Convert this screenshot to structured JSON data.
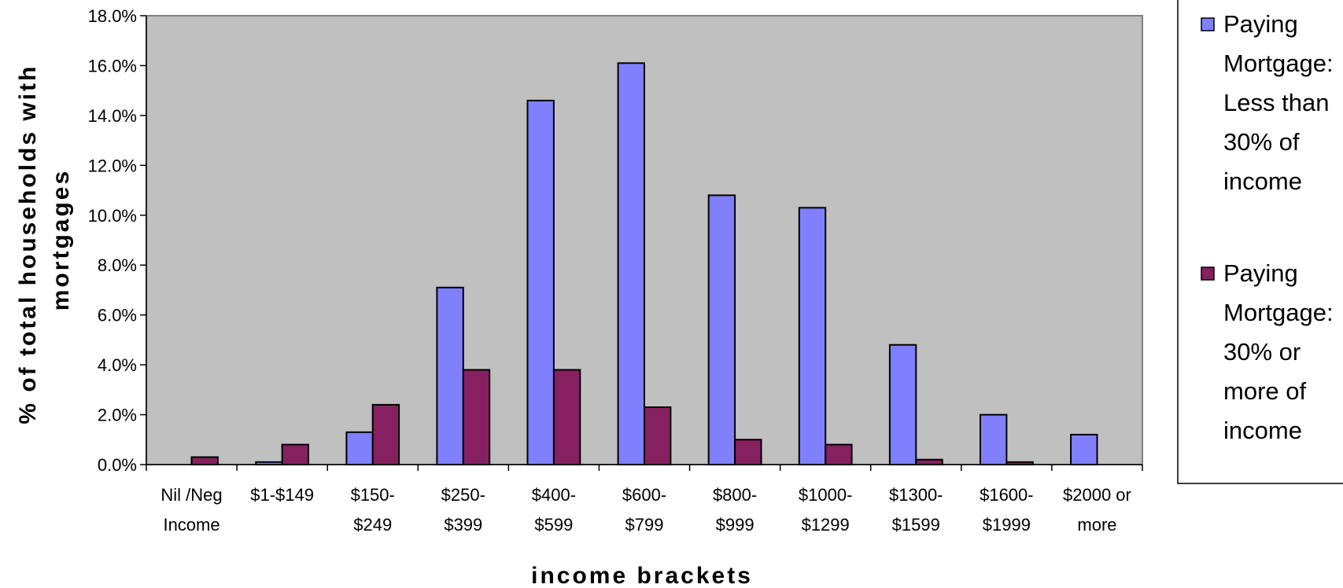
{
  "chart_data": {
    "type": "bar",
    "title": "",
    "xlabel": "income brackets",
    "ylabel_lines": [
      "% of total households with",
      "mortgages"
    ],
    "ylim": [
      0,
      18
    ],
    "yticks": [
      "0.0%",
      "2.0%",
      "4.0%",
      "6.0%",
      "8.0%",
      "10.0%",
      "12.0%",
      "14.0%",
      "16.0%",
      "18.0%"
    ],
    "grid": false,
    "legend_position": "right",
    "categories": [
      [
        "Nil /Neg",
        "Income"
      ],
      [
        "$1-$149"
      ],
      [
        "$150-",
        "$249"
      ],
      [
        "$250-",
        "$399"
      ],
      [
        "$400-",
        "$599"
      ],
      [
        "$600-",
        "$799"
      ],
      [
        "$800-",
        "$999"
      ],
      [
        "$1000-",
        "$1299"
      ],
      [
        "$1300-",
        "$1599"
      ],
      [
        "$1600-",
        "$1999"
      ],
      [
        "$2000 or",
        "more"
      ]
    ],
    "series": [
      {
        "name": "Paying Mortgage: Less than 30% of income",
        "legend_lines": [
          "Paying",
          "Mortgage:",
          "Less than",
          "30% of",
          "income"
        ],
        "color": "#8080ff",
        "values": [
          0.0,
          0.1,
          1.3,
          7.1,
          14.6,
          16.1,
          10.8,
          10.3,
          4.8,
          2.0,
          1.2
        ]
      },
      {
        "name": "Paying Mortgage: 30% or more of income",
        "legend_lines": [
          "Paying",
          "Mortgage:",
          "30% or",
          "more of",
          "income"
        ],
        "color": "#862060",
        "values": [
          0.3,
          0.8,
          2.4,
          3.8,
          3.8,
          2.3,
          1.0,
          0.8,
          0.2,
          0.1,
          0.0
        ]
      }
    ],
    "plot_background": "#c0c0c0"
  }
}
